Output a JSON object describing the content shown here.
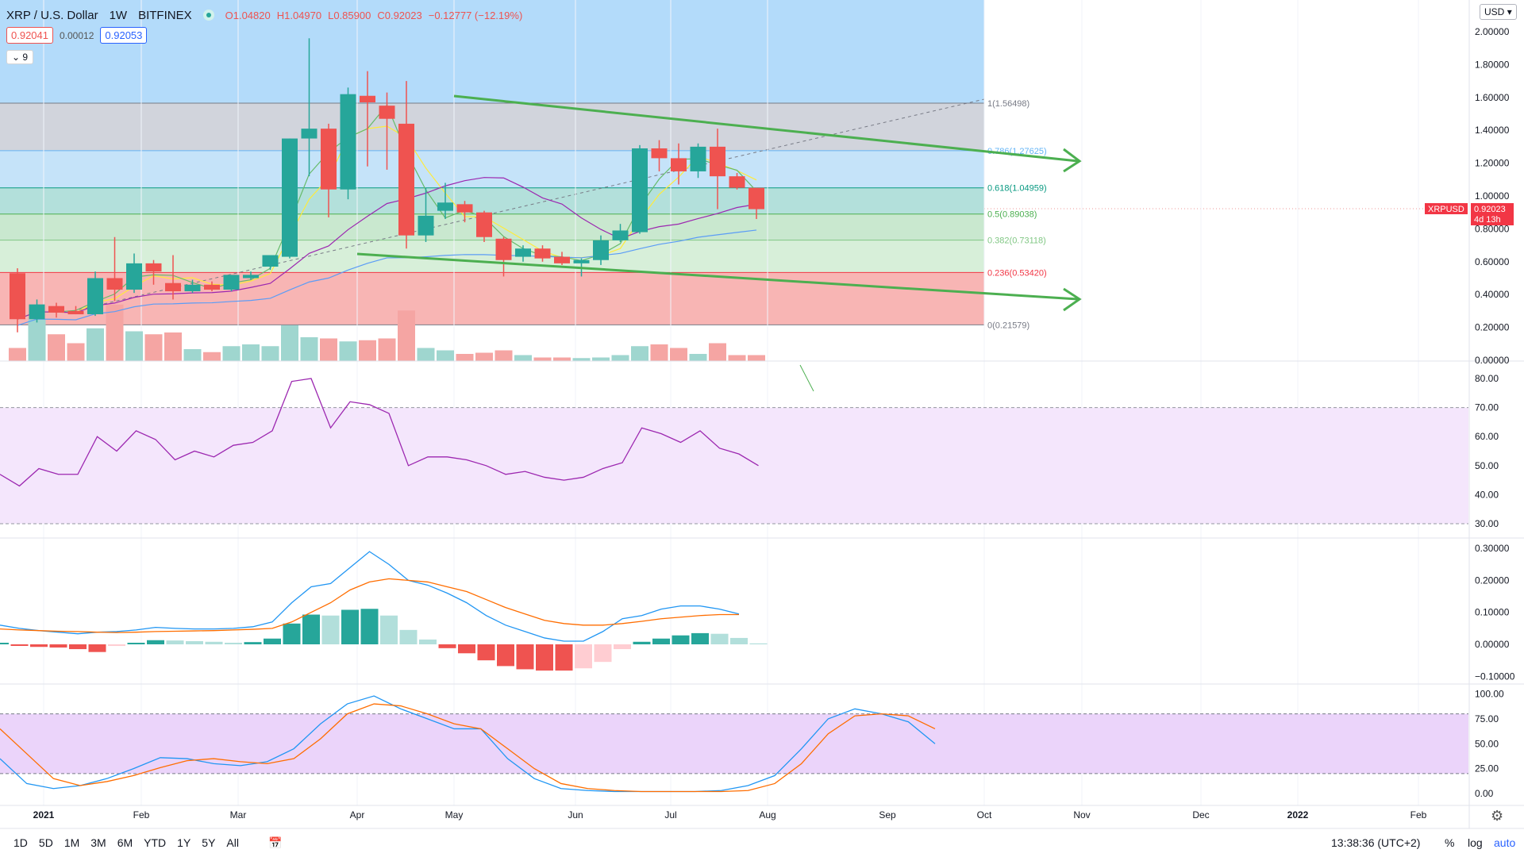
{
  "header": {
    "symbol": "XRP / U.S. Dollar",
    "timeframe": "1W",
    "exchange": "BITFINEX",
    "open": "O1.04820",
    "high": "H1.04970",
    "low": "L0.85900",
    "close": "C0.92023",
    "change": "−0.12777 (−12.19%)",
    "sell_price": "0.92041",
    "spread": "0.00012",
    "buy_price": "0.92053",
    "collapse_count": "9",
    "currency": "USD"
  },
  "price_tag": {
    "symbol": "XRPUSD",
    "price": "0.92023",
    "countdown": "4d 13h"
  },
  "fib_labels": [
    "1(1.56498)",
    "0.786(1.27625)",
    "0.618(1.04959)",
    "0.5(0.89038)",
    "0.382(0.73118)",
    "0.236(0.53420)",
    "0(0.21579)"
  ],
  "price_axis": [
    "2.00000",
    "1.80000",
    "1.60000",
    "1.40000",
    "1.20000",
    "1.00000",
    "0.80000",
    "0.60000",
    "0.40000",
    "0.20000",
    "0.00000"
  ],
  "rsi_axis": [
    "80.00",
    "70.00",
    "60.00",
    "50.00",
    "40.00",
    "30.00"
  ],
  "macd_axis": [
    "0.30000",
    "0.20000",
    "0.10000",
    "0.00000",
    "−0.10000"
  ],
  "stoch_axis": [
    "100.00",
    "75.00",
    "50.00",
    "25.00",
    "0.00"
  ],
  "time_axis": [
    "2021",
    "Feb",
    "Mar",
    "Apr",
    "May",
    "Jun",
    "Jul",
    "Aug",
    "Sep",
    "Oct",
    "Nov",
    "Dec",
    "2022",
    "Feb"
  ],
  "bottom_bar": {
    "ranges": [
      "1D",
      "5D",
      "1M",
      "3M",
      "6M",
      "YTD",
      "1Y",
      "5Y",
      "All"
    ],
    "clock": "13:38:36 (UTC+2)",
    "percent": "%",
    "log": "log",
    "auto": "auto"
  },
  "colors": {
    "up": "#26a69a",
    "down": "#ef5350",
    "rsi": "#9c27b0",
    "macd": "#2196f3",
    "signal": "#ff6d00",
    "arrow": "#4caf50"
  },
  "chart_data": [
    {
      "type": "candlestick",
      "title": "XRP / U.S. Dollar 1W BITFINEX",
      "ylim": [
        0,
        2.05
      ],
      "candles": [
        {
          "o": 0.53,
          "h": 0.56,
          "l": 0.17,
          "c": 0.25
        },
        {
          "o": 0.25,
          "h": 0.37,
          "l": 0.23,
          "c": 0.34
        },
        {
          "o": 0.33,
          "h": 0.35,
          "l": 0.26,
          "c": 0.29
        },
        {
          "o": 0.3,
          "h": 0.33,
          "l": 0.28,
          "c": 0.28
        },
        {
          "o": 0.28,
          "h": 0.54,
          "l": 0.27,
          "c": 0.5
        },
        {
          "o": 0.5,
          "h": 0.75,
          "l": 0.36,
          "c": 0.43
        },
        {
          "o": 0.43,
          "h": 0.65,
          "l": 0.41,
          "c": 0.59
        },
        {
          "o": 0.59,
          "h": 0.61,
          "l": 0.46,
          "c": 0.54
        },
        {
          "o": 0.47,
          "h": 0.64,
          "l": 0.37,
          "c": 0.42
        },
        {
          "o": 0.42,
          "h": 0.49,
          "l": 0.41,
          "c": 0.46
        },
        {
          "o": 0.46,
          "h": 0.48,
          "l": 0.42,
          "c": 0.43
        },
        {
          "o": 0.43,
          "h": 0.52,
          "l": 0.42,
          "c": 0.52
        },
        {
          "o": 0.5,
          "h": 0.54,
          "l": 0.49,
          "c": 0.52
        },
        {
          "o": 0.57,
          "h": 0.63,
          "l": 0.55,
          "c": 0.64
        },
        {
          "o": 0.63,
          "h": 1.35,
          "l": 0.62,
          "c": 1.35
        },
        {
          "o": 1.35,
          "h": 1.96,
          "l": 1.12,
          "c": 1.41
        },
        {
          "o": 1.41,
          "h": 1.44,
          "l": 0.87,
          "c": 1.04
        },
        {
          "o": 1.04,
          "h": 1.66,
          "l": 0.98,
          "c": 1.62
        },
        {
          "o": 1.61,
          "h": 1.76,
          "l": 1.18,
          "c": 1.57
        },
        {
          "o": 1.55,
          "h": 1.63,
          "l": 1.16,
          "c": 1.47
        },
        {
          "o": 1.44,
          "h": 1.7,
          "l": 0.68,
          "c": 0.76
        },
        {
          "o": 0.76,
          "h": 1.05,
          "l": 0.72,
          "c": 0.88
        },
        {
          "o": 0.91,
          "h": 1.08,
          "l": 0.86,
          "c": 0.96
        },
        {
          "o": 0.95,
          "h": 0.97,
          "l": 0.84,
          "c": 0.9
        },
        {
          "o": 0.9,
          "h": 0.91,
          "l": 0.72,
          "c": 0.75
        },
        {
          "o": 0.74,
          "h": 0.75,
          "l": 0.51,
          "c": 0.61
        },
        {
          "o": 0.63,
          "h": 0.7,
          "l": 0.6,
          "c": 0.68
        },
        {
          "o": 0.68,
          "h": 0.7,
          "l": 0.6,
          "c": 0.62
        },
        {
          "o": 0.63,
          "h": 0.66,
          "l": 0.58,
          "c": 0.59
        },
        {
          "o": 0.59,
          "h": 0.62,
          "l": 0.51,
          "c": 0.61
        },
        {
          "o": 0.61,
          "h": 0.76,
          "l": 0.58,
          "c": 0.73
        },
        {
          "o": 0.73,
          "h": 0.83,
          "l": 0.72,
          "c": 0.79
        },
        {
          "o": 0.78,
          "h": 1.31,
          "l": 0.77,
          "c": 1.29
        },
        {
          "o": 1.29,
          "h": 1.34,
          "l": 1.15,
          "c": 1.23
        },
        {
          "o": 1.23,
          "h": 1.32,
          "l": 1.07,
          "c": 1.15
        },
        {
          "o": 1.15,
          "h": 1.32,
          "l": 1.11,
          "c": 1.3
        },
        {
          "o": 1.3,
          "h": 1.41,
          "l": 0.92,
          "c": 1.12
        },
        {
          "o": 1.12,
          "h": 1.14,
          "l": 1.04,
          "c": 1.05
        },
        {
          "o": 1.05,
          "h": 1.05,
          "l": 0.86,
          "c": 0.92
        }
      ],
      "volume": [
        0.22,
        0.7,
        0.45,
        0.3,
        0.55,
        0.95,
        0.5,
        0.45,
        0.48,
        0.2,
        0.15,
        0.25,
        0.28,
        0.25,
        0.6,
        0.4,
        0.38,
        0.33,
        0.35,
        0.38,
        0.85,
        0.22,
        0.18,
        0.12,
        0.14,
        0.18,
        0.1,
        0.06,
        0.06,
        0.05,
        0.06,
        0.1,
        0.25,
        0.28,
        0.22,
        0.12,
        0.3,
        0.1,
        0.1
      ],
      "fib_levels": [
        1.56498,
        1.27625,
        1.04959,
        0.89038,
        0.73118,
        0.5342,
        0.21579
      ]
    },
    {
      "type": "line",
      "title": "",
      "ylim": [
        27,
        82
      ],
      "series": [
        {
          "values": [
            47,
            43,
            49,
            47,
            47,
            60,
            55,
            62,
            59,
            52,
            55,
            53,
            57,
            58,
            62,
            79,
            80,
            63,
            72,
            71,
            68,
            50,
            53,
            53,
            52,
            50,
            47,
            48,
            46,
            45,
            46,
            49,
            51,
            63,
            61,
            58,
            62,
            56,
            54,
            50
          ]
        }
      ]
    },
    {
      "type": "bar",
      "title": "",
      "ylim": [
        -0.12,
        0.31
      ],
      "histogram": [
        0.005,
        -0.005,
        -0.008,
        -0.01,
        -0.015,
        -0.024,
        -0.005,
        0.005,
        0.013,
        0.012,
        0.01,
        0.008,
        0.005,
        0.007,
        0.018,
        0.065,
        0.093,
        0.09,
        0.108,
        0.111,
        0.09,
        0.045,
        0.015,
        -0.012,
        -0.028,
        -0.05,
        -0.068,
        -0.078,
        -0.082,
        -0.082,
        -0.075,
        -0.055,
        -0.015,
        0.008,
        0.018,
        0.028,
        0.035,
        0.033,
        0.02,
        0.003
      ],
      "series": [
        {
          "values": [
            0.06,
            0.05,
            0.043,
            0.038,
            0.033,
            0.038,
            0.04,
            0.045,
            0.053,
            0.05,
            0.048,
            0.048,
            0.05,
            0.055,
            0.07,
            0.13,
            0.18,
            0.19,
            0.24,
            0.29,
            0.25,
            0.2,
            0.185,
            0.16,
            0.13,
            0.09,
            0.06,
            0.04,
            0.02,
            0.01,
            0.01,
            0.04,
            0.08,
            0.09,
            0.11,
            0.12,
            0.12,
            0.11,
            0.095
          ]
        },
        {
          "values": [
            0.048,
            0.045,
            0.043,
            0.041,
            0.04,
            0.038,
            0.037,
            0.038,
            0.04,
            0.041,
            0.042,
            0.043,
            0.045,
            0.047,
            0.05,
            0.07,
            0.1,
            0.13,
            0.17,
            0.195,
            0.205,
            0.2,
            0.195,
            0.18,
            0.165,
            0.14,
            0.115,
            0.095,
            0.075,
            0.065,
            0.06,
            0.06,
            0.065,
            0.072,
            0.08,
            0.085,
            0.09,
            0.093,
            0.093
          ]
        }
      ]
    },
    {
      "type": "line",
      "title": "",
      "ylim": [
        -5,
        105
      ],
      "series": [
        {
          "values": [
            35,
            10,
            5,
            8,
            15,
            25,
            36,
            35,
            30,
            28,
            32,
            45,
            70,
            90,
            98,
            85,
            75,
            65,
            65,
            35,
            15,
            5,
            3,
            2,
            2,
            2,
            2,
            3,
            8,
            18,
            45,
            75,
            85,
            80,
            72,
            50
          ]
        },
        {
          "values": [
            65,
            40,
            15,
            8,
            12,
            18,
            26,
            33,
            35,
            32,
            30,
            35,
            55,
            80,
            90,
            88,
            80,
            70,
            65,
            45,
            25,
            10,
            5,
            3,
            2,
            2,
            2,
            2,
            3,
            10,
            30,
            60,
            78,
            80,
            78,
            65
          ]
        }
      ]
    }
  ]
}
